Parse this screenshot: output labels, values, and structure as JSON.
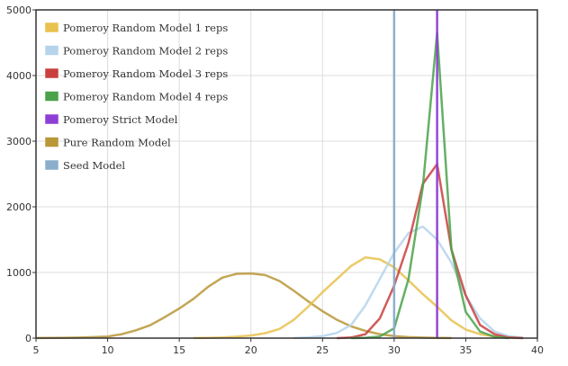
{
  "chart_data": {
    "type": "line",
    "title": "",
    "xlabel": "",
    "ylabel": "",
    "xlim": [
      5,
      40
    ],
    "ylim": [
      0,
      5000
    ],
    "x_ticks": [
      5,
      10,
      15,
      20,
      25,
      30,
      35,
      40
    ],
    "y_ticks": [
      0,
      1000,
      2000,
      3000,
      4000,
      5000
    ],
    "grid": true,
    "legend_position": "top-left",
    "series": [
      {
        "name": "Pomeroy Random Model 1 reps",
        "color": "#e8c14e",
        "points": [
          [
            16,
            2
          ],
          [
            17,
            4
          ],
          [
            18,
            10
          ],
          [
            19,
            22
          ],
          [
            20,
            40
          ],
          [
            21,
            75
          ],
          [
            22,
            140
          ],
          [
            23,
            280
          ],
          [
            24,
            480
          ],
          [
            25,
            700
          ],
          [
            26,
            900
          ],
          [
            27,
            1100
          ],
          [
            28,
            1230
          ],
          [
            29,
            1200
          ],
          [
            30,
            1080
          ],
          [
            31,
            880
          ],
          [
            32,
            670
          ],
          [
            33,
            480
          ],
          [
            34,
            270
          ],
          [
            35,
            130
          ],
          [
            36,
            60
          ],
          [
            37,
            25
          ],
          [
            38,
            8
          ],
          [
            39,
            2
          ]
        ]
      },
      {
        "name": "Pomeroy Random Model 2 reps",
        "color": "#b5d4ec",
        "points": [
          [
            23,
            2
          ],
          [
            24,
            10
          ],
          [
            25,
            30
          ],
          [
            26,
            80
          ],
          [
            27,
            200
          ],
          [
            28,
            500
          ],
          [
            29,
            900
          ],
          [
            30,
            1300
          ],
          [
            31,
            1600
          ],
          [
            32,
            1700
          ],
          [
            33,
            1500
          ],
          [
            34,
            1150
          ],
          [
            35,
            650
          ],
          [
            36,
            300
          ],
          [
            37,
            100
          ],
          [
            38,
            30
          ],
          [
            39,
            5
          ]
        ]
      },
      {
        "name": "Pomeroy Random Model 3 reps",
        "color": "#c9403e",
        "points": [
          [
            26,
            0
          ],
          [
            27,
            10
          ],
          [
            28,
            60
          ],
          [
            29,
            300
          ],
          [
            30,
            800
          ],
          [
            31,
            1450
          ],
          [
            32,
            2350
          ],
          [
            33,
            2650
          ],
          [
            34,
            1350
          ],
          [
            35,
            650
          ],
          [
            36,
            200
          ],
          [
            37,
            60
          ],
          [
            38,
            10
          ],
          [
            39,
            0
          ]
        ]
      },
      {
        "name": "Pomeroy Random Model 4 reps",
        "color": "#4aa24a",
        "points": [
          [
            27,
            0
          ],
          [
            28,
            5
          ],
          [
            29,
            25
          ],
          [
            30,
            150
          ],
          [
            31,
            900
          ],
          [
            32,
            2300
          ],
          [
            33,
            4650
          ],
          [
            34,
            1350
          ],
          [
            35,
            400
          ],
          [
            36,
            100
          ],
          [
            37,
            20
          ],
          [
            38,
            0
          ]
        ]
      },
      {
        "name": "Pomeroy Strict Model",
        "color": "#8e3fd6",
        "vline": 33
      },
      {
        "name": "Pure Random Model",
        "color": "#b99737",
        "points": [
          [
            5,
            2
          ],
          [
            6,
            3
          ],
          [
            7,
            5
          ],
          [
            8,
            8
          ],
          [
            9,
            15
          ],
          [
            10,
            25
          ],
          [
            11,
            60
          ],
          [
            12,
            120
          ],
          [
            13,
            200
          ],
          [
            14,
            320
          ],
          [
            15,
            450
          ],
          [
            16,
            600
          ],
          [
            17,
            780
          ],
          [
            18,
            920
          ],
          [
            19,
            980
          ],
          [
            20,
            985
          ],
          [
            21,
            960
          ],
          [
            22,
            870
          ],
          [
            23,
            720
          ],
          [
            24,
            560
          ],
          [
            25,
            410
          ],
          [
            26,
            280
          ],
          [
            27,
            180
          ],
          [
            28,
            110
          ],
          [
            29,
            60
          ],
          [
            30,
            30
          ],
          [
            31,
            15
          ],
          [
            32,
            8
          ],
          [
            33,
            3
          ],
          [
            34,
            1
          ]
        ]
      },
      {
        "name": "Seed Model",
        "color": "#8aaecb",
        "vline": 30
      }
    ]
  }
}
